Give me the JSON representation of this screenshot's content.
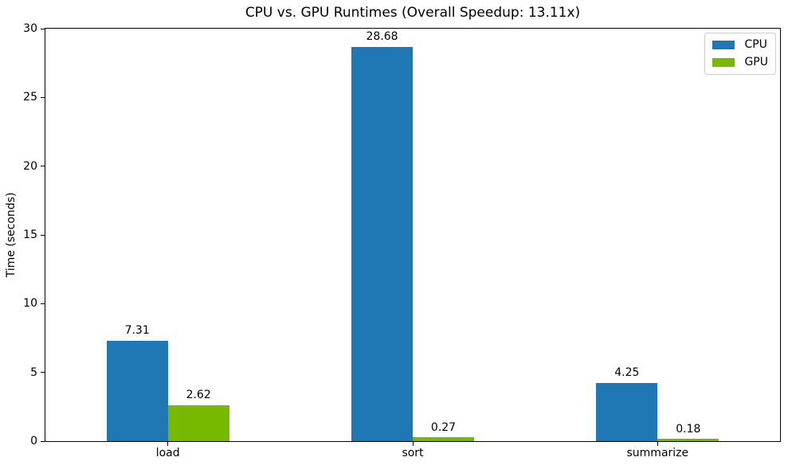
{
  "chart_data": {
    "type": "bar",
    "title": "CPU vs. GPU Runtimes (Overall Speedup: 13.11x)",
    "xlabel": "",
    "ylabel": "Time (seconds)",
    "categories": [
      "load",
      "sort",
      "summarize"
    ],
    "series": [
      {
        "name": "CPU",
        "color": "#1f77b4",
        "values": [
          7.31,
          28.68,
          4.25
        ]
      },
      {
        "name": "GPU",
        "color": "#76b900",
        "values": [
          2.62,
          0.27,
          0.18
        ]
      }
    ],
    "bar_value_labels": [
      [
        "7.31",
        "28.68",
        "4.25"
      ],
      [
        "2.62",
        "0.27",
        "0.18"
      ]
    ],
    "ylim": [
      0,
      30
    ],
    "yticks": [
      0,
      5,
      10,
      15,
      20,
      25,
      30
    ],
    "grid": false,
    "legend_position": "upper right",
    "text_color": "#000000",
    "spine_color": "#000000",
    "background_color": "#ffffff"
  }
}
